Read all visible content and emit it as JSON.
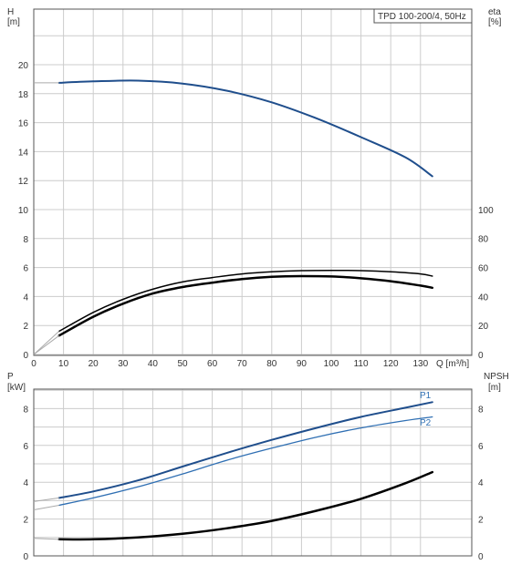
{
  "colors": {
    "blue": "#1f4e8c",
    "blue_light": "#2f6fb3",
    "black": "#000000",
    "grid": "#cccccc",
    "frame": "#555555",
    "tail": "#aaaaaa"
  },
  "top_panel": {
    "y_left_title": "H",
    "y_left_unit": "[m]",
    "y_right_title": "eta",
    "y_right_unit": "[%]",
    "x_title": "Q [m³/h]",
    "legend": "TPD 100-200/4, 50Hz",
    "y_left_ticks": [
      "0",
      "2",
      "4",
      "6",
      "8",
      "10",
      "12",
      "14",
      "16",
      "18",
      "20"
    ],
    "y_right_ticks": [
      "0",
      "20",
      "40",
      "60",
      "80",
      "100"
    ],
    "x_ticks": [
      "0",
      "10",
      "20",
      "30",
      "40",
      "50",
      "60",
      "70",
      "80",
      "90",
      "100",
      "110",
      "120",
      "130"
    ]
  },
  "bottom_panel": {
    "y_left_title": "P",
    "y_left_unit": "[kW]",
    "y_right_title": "NPSH",
    "y_right_unit": "[m]",
    "y_left_ticks": [
      "0",
      "2",
      "4",
      "6",
      "8"
    ],
    "y_right_ticks": [
      "0",
      "2",
      "4",
      "6",
      "8"
    ],
    "series_label_p1": "P1",
    "series_label_p2": "P2"
  },
  "chart_data": [
    {
      "type": "line",
      "x_label": "Q [m³/h]",
      "y_left_label": "H [m]",
      "y_right_label": "eta [%]",
      "legend": "TPD 100-200/4, 50Hz",
      "xlim": [
        0,
        148
      ],
      "ylim_left": [
        0,
        22
      ],
      "ylim_right": [
        0,
        100
      ],
      "grid": true,
      "series": [
        {
          "axis": "left",
          "color": "#1f4e8c",
          "width": 2,
          "x": [
            8.5,
            20,
            35,
            50,
            65,
            80,
            95,
            110,
            125,
            134
          ],
          "y": [
            18.75,
            18.85,
            18.9,
            18.7,
            18.2,
            17.4,
            16.3,
            15.0,
            13.6,
            12.3
          ]
        },
        {
          "axis": "right",
          "color": "#000000",
          "width": 1.5,
          "x": [
            8.5,
            20,
            30,
            40,
            50,
            60,
            70,
            80,
            90,
            100,
            110,
            120,
            130,
            134
          ],
          "y": [
            16,
            29,
            38,
            45,
            50,
            53,
            55.5,
            57,
            57.8,
            58,
            57.8,
            57,
            55.5,
            54
          ]
        },
        {
          "axis": "right",
          "color": "#000000",
          "width": 2.5,
          "x": [
            8.5,
            20,
            30,
            40,
            50,
            60,
            70,
            80,
            90,
            100,
            110,
            120,
            130,
            134
          ],
          "y": [
            13,
            26,
            35,
            42,
            46.5,
            49.5,
            52,
            53.5,
            54,
            53.8,
            52.5,
            50.5,
            47.5,
            46
          ]
        }
      ]
    },
    {
      "type": "line",
      "x_label": "Q [m³/h]",
      "y_left_label": "P [kW]",
      "y_right_label": "NPSH [m]",
      "xlim": [
        0,
        148
      ],
      "ylim_left": [
        0,
        10
      ],
      "ylim_right": [
        0,
        10
      ],
      "grid": true,
      "series": [
        {
          "name": "P1",
          "axis": "left",
          "color": "#1f4e8c",
          "width": 2,
          "x": [
            8.5,
            20,
            35,
            50,
            65,
            80,
            95,
            110,
            125,
            134
          ],
          "y": [
            3.15,
            3.5,
            4.1,
            4.85,
            5.6,
            6.3,
            6.95,
            7.55,
            8.05,
            8.35
          ]
        },
        {
          "name": "P2",
          "axis": "left",
          "color": "#2f6fb3",
          "width": 1.3,
          "x": [
            8.5,
            20,
            35,
            50,
            65,
            80,
            95,
            110,
            125,
            134
          ],
          "y": [
            2.75,
            3.15,
            3.75,
            4.45,
            5.2,
            5.85,
            6.45,
            6.95,
            7.35,
            7.55
          ]
        },
        {
          "name": "NPSH",
          "axis": "right",
          "color": "#000000",
          "width": 2.5,
          "x": [
            8.5,
            20,
            35,
            50,
            65,
            80,
            95,
            110,
            125,
            134
          ],
          "y": [
            0.9,
            0.9,
            1.0,
            1.2,
            1.5,
            1.9,
            2.45,
            3.1,
            3.95,
            4.55
          ]
        }
      ]
    }
  ]
}
